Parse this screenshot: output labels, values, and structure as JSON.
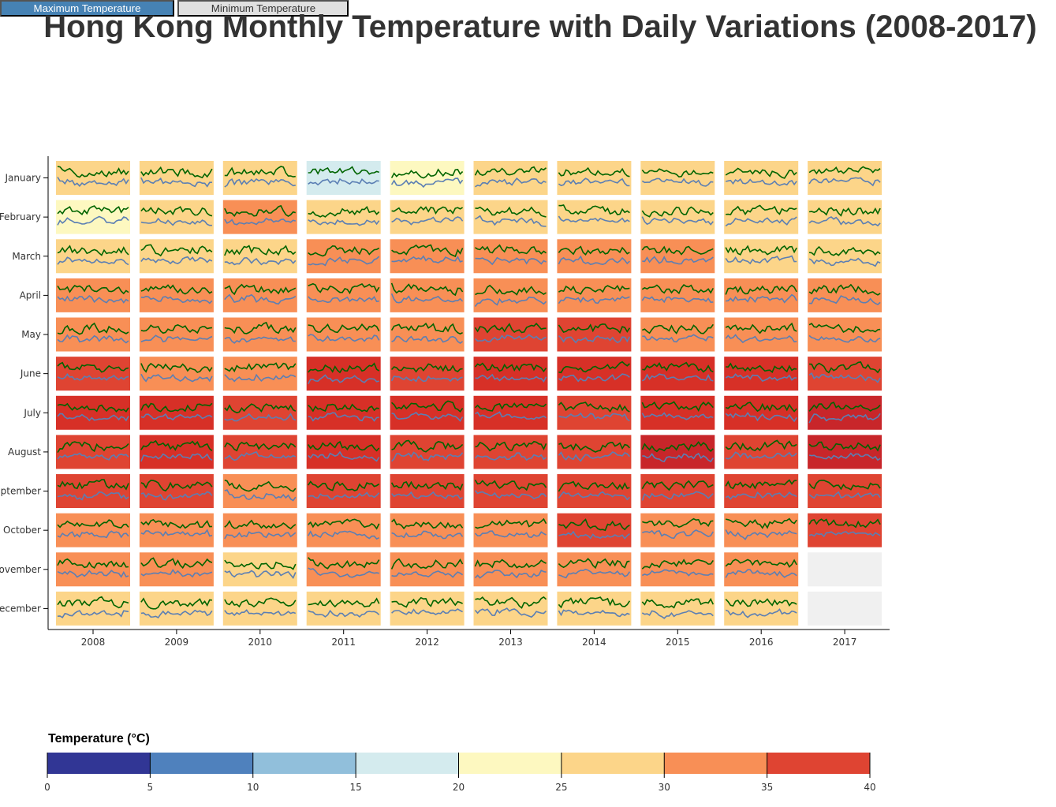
{
  "title": "Hong Kong Monthly Temperature with Daily Variations (2008-2017)",
  "controls": {
    "max_label": "Maximum Temperature",
    "min_label": "Minimum Temperature",
    "active": "max"
  },
  "colors": {
    "max_line": "#006400",
    "min_line": "#5b7fb4",
    "active_button": "#4682b4",
    "inactive_button": "#e0e0e0",
    "missing_cell": "#f0f0f0"
  },
  "chart_data": {
    "type": "heatmap",
    "years": [
      "2008",
      "2009",
      "2010",
      "2011",
      "2012",
      "2013",
      "2014",
      "2015",
      "2016",
      "2017"
    ],
    "months": [
      "January",
      "February",
      "March",
      "April",
      "May",
      "June",
      "July",
      "August",
      "September",
      "October",
      "November",
      "December"
    ],
    "max_temperature_by_month": [
      [
        28.5,
        26.6,
        28.9,
        19.5,
        23.6,
        26.5,
        26.6,
        26.6,
        26.0,
        27.0
      ],
      [
        23.0,
        29.0,
        30.7,
        29.2,
        29.4,
        29.4,
        26.5,
        29.2,
        29.2,
        27.6
      ],
      [
        28.7,
        29.8,
        29.5,
        30.0,
        31.3,
        31.0,
        30.0,
        30.4,
        28.4,
        29.3
      ],
      [
        32.0,
        31.1,
        31.3,
        32.1,
        31.4,
        32.6,
        31.6,
        33.4,
        31.4,
        30.7
      ],
      [
        34.3,
        34.0,
        33.3,
        33.3,
        33.5,
        35.0,
        35.5,
        34.8,
        33.5,
        33.5
      ],
      [
        35.3,
        34.9,
        34.7,
        37.0,
        35.3,
        37.2,
        36.7,
        37.0,
        36.8,
        35.9
      ],
      [
        37.5,
        36.8,
        36.0,
        37.0,
        36.5,
        36.5,
        36.4,
        36.5,
        36.8,
        38.0
      ],
      [
        35.9,
        37.5,
        36.0,
        36.9,
        36.0,
        36.0,
        36.2,
        38.5,
        36.0,
        38.0
      ],
      [
        35.3,
        35.0,
        34.7,
        35.9,
        35.1,
        35.3,
        35.0,
        35.0,
        35.2,
        35.0
      ],
      [
        33.8,
        32.7,
        34.6,
        33.1,
        32.8,
        32.8,
        35.4,
        34.1,
        34.3,
        35.6
      ],
      [
        32.0,
        32.0,
        27.1,
        32.3,
        31.5,
        31.4,
        30.7,
        30.9,
        31.3,
        null
      ],
      [
        29.8,
        26.9,
        28.0,
        28.4,
        28.5,
        25.5,
        28.1,
        28.0,
        27.5,
        null
      ]
    ],
    "legend": {
      "title": "Temperature (°C)",
      "ticks": [
        "0",
        "5",
        "10",
        "15",
        "20",
        "25",
        "30",
        "35",
        "40"
      ],
      "bins": [
        {
          "from": 0,
          "to": 5,
          "color": "#313695"
        },
        {
          "from": 5,
          "to": 10,
          "color": "#4f81bd"
        },
        {
          "from": 10,
          "to": 15,
          "color": "#91bfdb"
        },
        {
          "from": 15,
          "to": 20,
          "color": "#d4ebee"
        },
        {
          "from": 20,
          "to": 25,
          "color": "#fdf8c0"
        },
        {
          "from": 25,
          "to": 30,
          "color": "#fcd589"
        },
        {
          "from": 30,
          "to": 35,
          "color": "#f88f56"
        },
        {
          "from": 35,
          "to": 40,
          "color": "#df4432"
        }
      ]
    }
  }
}
